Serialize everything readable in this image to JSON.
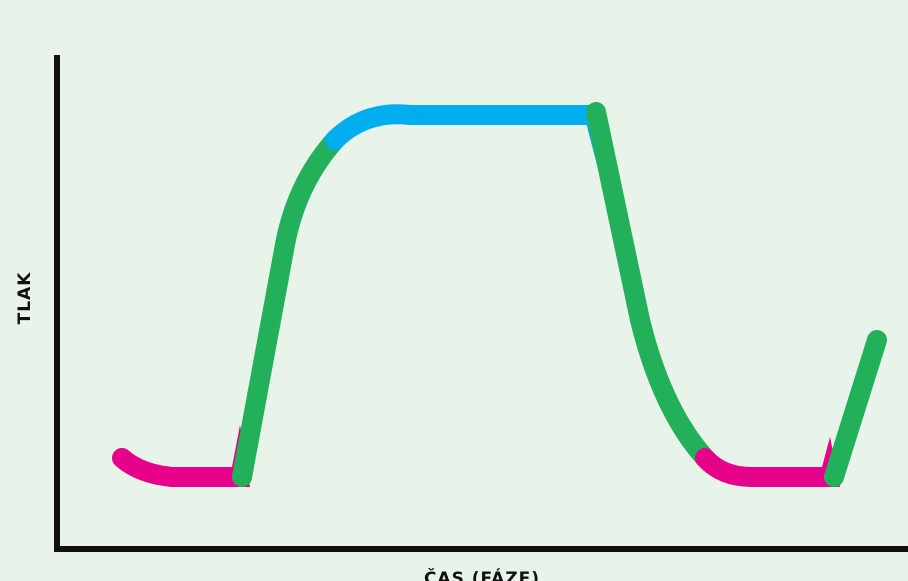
{
  "axes": {
    "y_label": "TLAK",
    "x_label": "ČAS (FÁZE)"
  }
}
